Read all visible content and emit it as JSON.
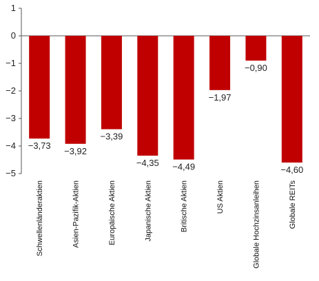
{
  "chart_data": {
    "type": "bar",
    "categories": [
      "Schwellenländeraktien",
      "Asien-Pazifik-Aktien",
      "Europäische Aktien",
      "Japanische Aktien",
      "Britische Aktien",
      "US Aktien",
      "Globale Hochzinsanleihen",
      "Globale REITs"
    ],
    "values": [
      -3.73,
      -3.92,
      -3.39,
      -4.35,
      -4.49,
      -1.97,
      -0.9,
      -4.6
    ],
    "value_labels": [
      "-3,73",
      "-3,92",
      "-3,39",
      "-4,35",
      "-4,49",
      "-1,97",
      "-0,90",
      "-4,60"
    ],
    "yticks": [
      1,
      0,
      -1,
      -2,
      -3,
      -4,
      -5
    ],
    "ytick_labels": [
      "1",
      "0",
      "-1",
      "-2",
      "-3",
      "-4",
      "-5"
    ],
    "ylim": [
      -5,
      1
    ],
    "grid": false,
    "bar_color": "#c00000",
    "axis_color": "#555555"
  }
}
